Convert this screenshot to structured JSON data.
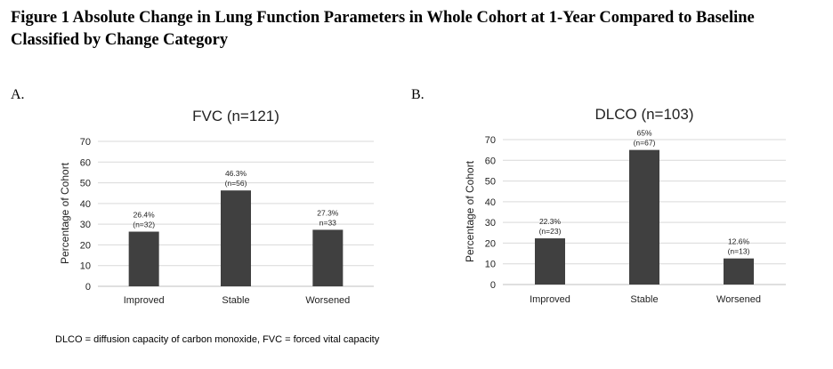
{
  "figure": {
    "title": "Figure 1 Absolute Change in Lung Function Parameters in Whole Cohort at 1-Year Compared to Baseline Classified by Change Category",
    "footnote": "DLCO = diffusion capacity of carbon monoxide, FVC = forced vital capacity"
  },
  "chart_data": [
    {
      "panel": "A.",
      "type": "bar",
      "title": "FVC (n=121)",
      "ylabel": "Percentage of Cohort",
      "xlabel": "",
      "categories": [
        "Improved",
        "Stable",
        "Worsened"
      ],
      "values": [
        26.4,
        46.3,
        27.3
      ],
      "data_labels": [
        [
          "26.4%",
          "(n=32)"
        ],
        [
          "46.3%",
          "(n=56)"
        ],
        [
          "27.3%",
          "n=33"
        ]
      ],
      "ylim": [
        0,
        70
      ],
      "yticks": [
        "0",
        "10",
        "20",
        "30",
        "40",
        "50",
        "60",
        "70"
      ],
      "grid": true,
      "bar_color": "#404040"
    },
    {
      "panel": "B.",
      "type": "bar",
      "title": "DLCO (n=103)",
      "ylabel": "Percentage of Cohort",
      "xlabel": "",
      "categories": [
        "Improved",
        "Stable",
        "Worsened"
      ],
      "values": [
        22.3,
        65,
        12.6
      ],
      "data_labels": [
        [
          "22.3%",
          "(n=23)"
        ],
        [
          "65%",
          "(n=67)"
        ],
        [
          "12.6%",
          "(n=13)"
        ]
      ],
      "ylim": [
        0,
        70
      ],
      "yticks": [
        "0",
        "10",
        "20",
        "30",
        "40",
        "50",
        "60",
        "70"
      ],
      "grid": true,
      "bar_color": "#404040"
    }
  ]
}
